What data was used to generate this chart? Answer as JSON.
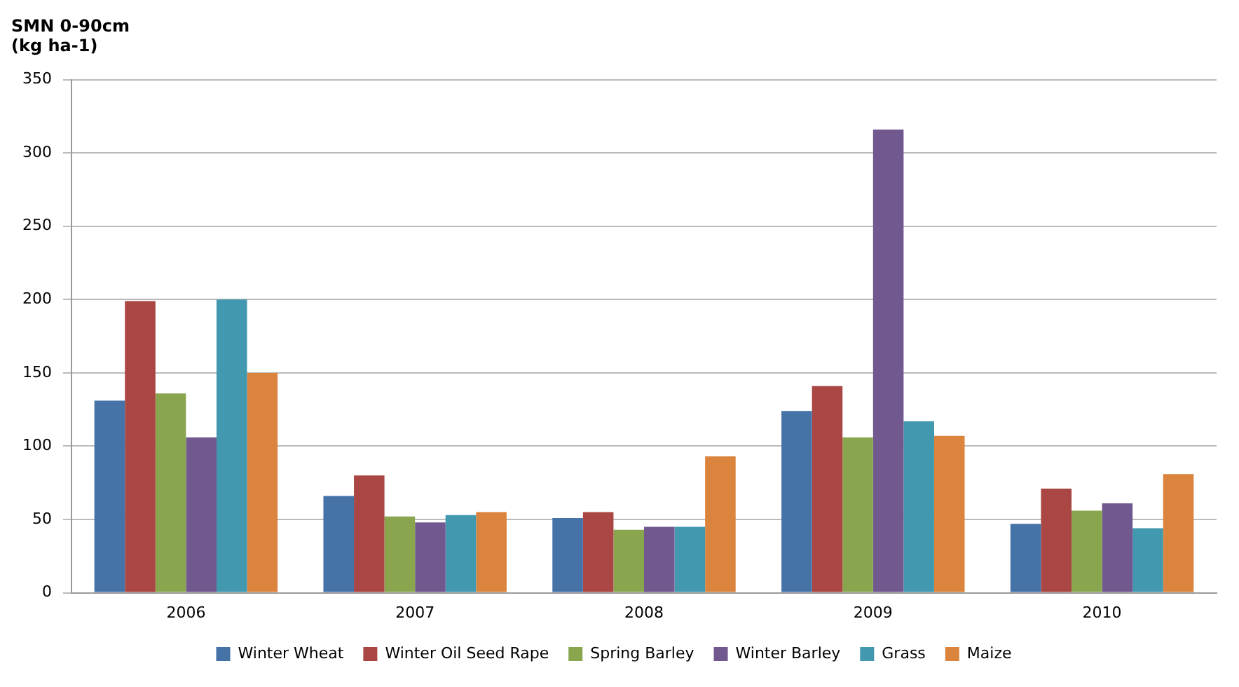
{
  "chart_data": {
    "type": "bar",
    "ylabel": "SMN 0-90cm\n(kg ha-1)",
    "categories": [
      "2006",
      "2007",
      "2008",
      "2009",
      "2010"
    ],
    "series": [
      {
        "name": "Winter Wheat",
        "color": "#4572a7",
        "values": [
          131,
          66,
          51,
          124,
          47
        ]
      },
      {
        "name": "Winter Oil Seed Rape",
        "color": "#aa4643",
        "values": [
          199,
          80,
          55,
          141,
          71
        ]
      },
      {
        "name": "Spring Barley",
        "color": "#89a54e",
        "values": [
          136,
          52,
          43,
          106,
          56
        ]
      },
      {
        "name": "Winter Barley",
        "color": "#71588f",
        "values": [
          106,
          48,
          45,
          316,
          61
        ]
      },
      {
        "name": "Grass",
        "color": "#4198af",
        "values": [
          200,
          53,
          45,
          117,
          44
        ]
      },
      {
        "name": "Maize",
        "color": "#db843d",
        "values": [
          150,
          55,
          93,
          107,
          81
        ]
      }
    ],
    "ylim": [
      0,
      350
    ],
    "yticks": [
      0,
      50,
      100,
      150,
      200,
      250,
      300,
      350
    ],
    "grid": "y",
    "legend": "bottom"
  }
}
